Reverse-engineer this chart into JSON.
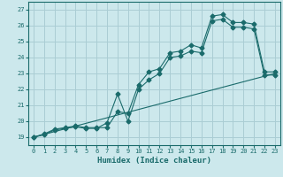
{
  "xlabel": "Humidex (Indice chaleur)",
  "bg_color": "#cce8ec",
  "grid_color": "#aacdd4",
  "line_color": "#1a6b6b",
  "xlim": [
    -0.5,
    23.5
  ],
  "ylim": [
    18.5,
    27.5
  ],
  "xticks": [
    0,
    1,
    2,
    3,
    4,
    5,
    6,
    7,
    8,
    9,
    10,
    11,
    12,
    13,
    14,
    15,
    16,
    17,
    18,
    19,
    20,
    21,
    22,
    23
  ],
  "yticks": [
    19,
    20,
    21,
    22,
    23,
    24,
    25,
    26,
    27
  ],
  "line1_x": [
    0,
    1,
    2,
    3,
    4,
    5,
    6,
    7,
    8,
    9,
    10,
    11,
    12,
    13,
    14,
    15,
    16,
    17,
    18,
    19,
    20,
    21,
    22,
    23
  ],
  "line1_y": [
    19.0,
    19.2,
    19.5,
    19.6,
    19.7,
    19.6,
    19.6,
    19.6,
    20.6,
    20.5,
    22.3,
    23.1,
    23.3,
    24.3,
    24.4,
    24.8,
    24.6,
    26.6,
    26.7,
    26.2,
    26.2,
    26.1,
    23.1,
    23.1
  ],
  "line2_x": [
    0,
    1,
    2,
    3,
    4,
    5,
    6,
    7,
    8,
    9,
    10,
    11,
    12,
    13,
    14,
    15,
    16,
    17,
    18,
    19,
    20,
    21,
    22,
    23
  ],
  "line2_y": [
    19.0,
    19.15,
    19.45,
    19.55,
    19.65,
    19.55,
    19.55,
    19.9,
    21.7,
    20.0,
    22.0,
    22.6,
    23.0,
    24.0,
    24.1,
    24.4,
    24.3,
    26.3,
    26.4,
    25.9,
    25.9,
    25.8,
    22.9,
    22.9
  ],
  "line3_x": [
    0,
    23
  ],
  "line3_y": [
    19.0,
    23.0
  ],
  "marker": "D",
  "markersize": 2.5
}
